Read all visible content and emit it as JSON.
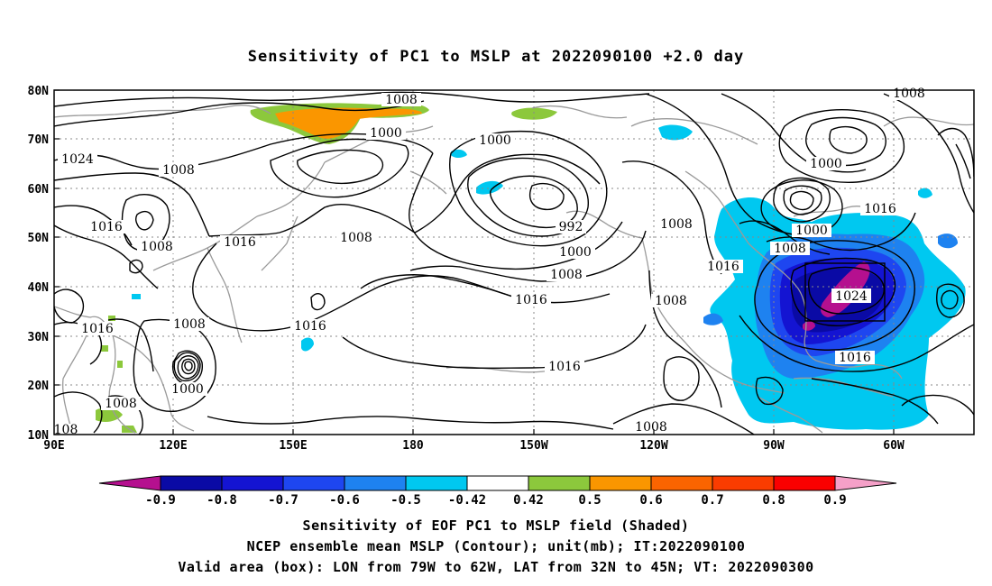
{
  "title": "Sensitivity of PC1 to MSLP at 2022090100 +2.0 day",
  "lat_labels": [
    "80N",
    "70N",
    "60N",
    "50N",
    "40N",
    "30N",
    "20N",
    "10N"
  ],
  "lon_labels": [
    "90E",
    "120E",
    "150E",
    "180",
    "150W",
    "120W",
    "90W",
    "60W"
  ],
  "contour_labels": [
    "1008",
    "1008",
    "1000",
    "1000",
    "1024",
    "1008",
    "1000",
    "1016",
    "1008",
    "1016",
    "992",
    "1000",
    "1008",
    "1016",
    "1008",
    "1008",
    "1016",
    "1016",
    "1008",
    "1000",
    "1016",
    "1008",
    "1016",
    "1008",
    "1016",
    "1024",
    "1008",
    "1000",
    "1008",
    "1008",
    "1016",
    "1008",
    "108"
  ],
  "colorbar": {
    "labels": [
      "-0.9",
      "-0.8",
      "-0.7",
      "-0.6",
      "-0.5",
      "-0.42",
      "0.42",
      "0.5",
      "0.6",
      "0.7",
      "0.8",
      "0.9"
    ],
    "colors": [
      "#b5108f",
      "#0a0aa5",
      "#1414d2",
      "#1e46f0",
      "#1e82f0",
      "#00c8f0",
      "#ffffff",
      "#8cc83c",
      "#fa9600",
      "#fa6400",
      "#fa3c00",
      "#fa0000",
      "#f5a0c8"
    ]
  },
  "captions": [
    "Sensitivity of EOF PC1 to MSLP field (Shaded)",
    "NCEP ensemble mean MSLP (Contour); unit(mb); IT:2022090100",
    "Valid area (box): LON from 79W to 62W, LAT from 32N to 45N; VT: 2022090300"
  ]
}
